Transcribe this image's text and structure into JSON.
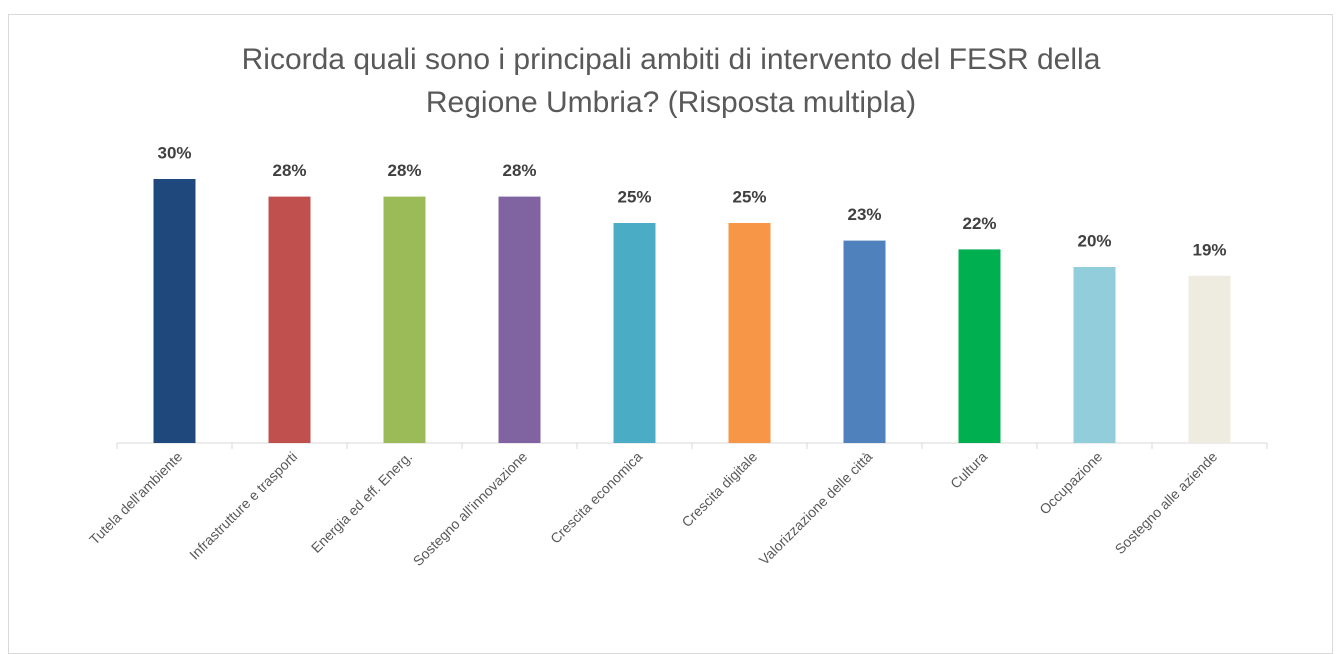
{
  "chart_data": {
    "type": "bar",
    "title": "Ricorda quali sono i principali ambiti di intervento del FESR della Regione Umbria? (Risposta multipla)",
    "categories": [
      "Tutela dell'ambiente",
      "Infrastrutture e trasporti",
      "Energia ed eff. Energ.",
      "Sostegno all'innovazione",
      "Crescita economica",
      "Crescita digitale",
      "Valorizzazione delle città",
      "Cultura",
      "Occupazione",
      "Sostegno alle aziende"
    ],
    "values": [
      30,
      28,
      28,
      28,
      25,
      25,
      23,
      22,
      20,
      19
    ],
    "value_labels": [
      "30%",
      "28%",
      "28%",
      "28%",
      "25%",
      "25%",
      "23%",
      "22%",
      "20%",
      "19%"
    ],
    "colors": [
      "#1f497d",
      "#c0504d",
      "#9bbb59",
      "#8064a2",
      "#4bacc6",
      "#f79646",
      "#4f81bd",
      "#00b050",
      "#92cddc",
      "#eeece1"
    ]
  }
}
